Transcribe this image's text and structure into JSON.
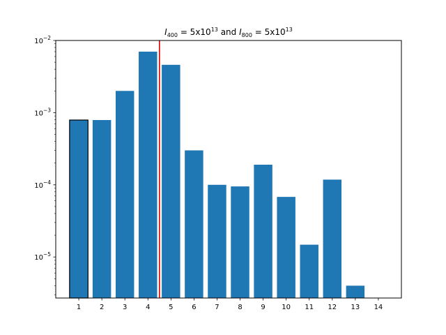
{
  "chart_data": {
    "type": "bar",
    "title": {
      "a_sym": "I",
      "a_sub": "400",
      "a_mid": " = 5x10",
      "a_exp": "13",
      "join": " and ",
      "b_sym": "I",
      "b_sub": "800",
      "b_mid": " = 5x10",
      "b_exp": "13"
    },
    "xlabel": "",
    "ylabel": "",
    "y_scale": "log",
    "ylim": [
      2.7e-06,
      0.01
    ],
    "categories": [
      "1",
      "2",
      "3",
      "4",
      "5",
      "6",
      "7",
      "8",
      "9",
      "10",
      "11",
      "12",
      "13",
      "14"
    ],
    "values": [
      0.00079,
      0.00079,
      0.002,
      0.007,
      0.0046,
      0.0003,
      0.0001,
      9.5e-05,
      0.00019,
      6.8e-05,
      1.48e-05,
      0.000118,
      4e-06,
      null
    ],
    "y_ticks": [
      {
        "value": 1e-05,
        "base": "10",
        "exp": "−5"
      },
      {
        "value": 0.0001,
        "base": "10",
        "exp": "−4"
      },
      {
        "value": 0.001,
        "base": "10",
        "exp": "−3"
      },
      {
        "value": 0.01,
        "base": "10",
        "exp": "−2"
      }
    ],
    "highlighted_bar_index": 0,
    "vline": {
      "x": 4.5,
      "color": "#e00000"
    },
    "bar_color": "#1f77b4",
    "highlight_edge_color": "#000000",
    "grid": false
  }
}
